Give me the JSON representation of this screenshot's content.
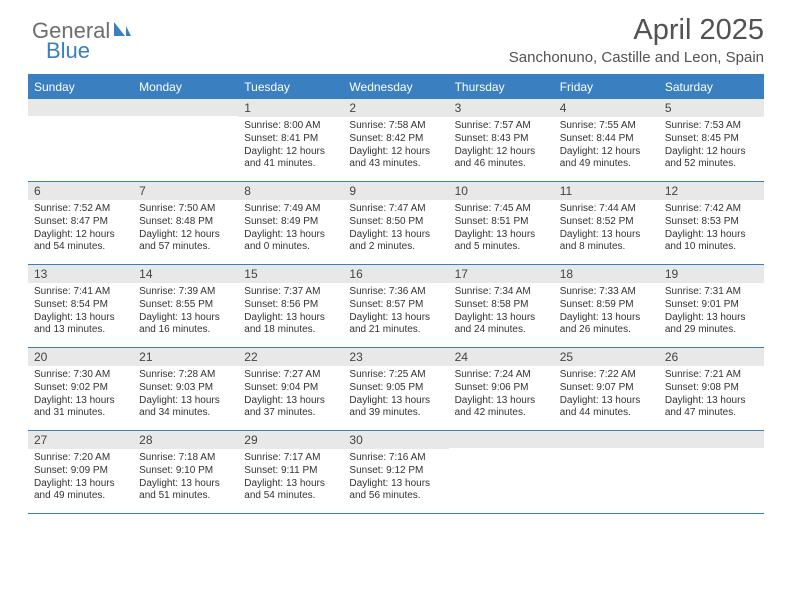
{
  "logo": {
    "text1": "General",
    "text2": "Blue"
  },
  "title": "April 2025",
  "location": "Sanchonuno, Castille and Leon, Spain",
  "colors": {
    "header_bg": "#3a7fbf",
    "header_text": "#ffffff",
    "daynum_bg": "#e8e8e8",
    "body_text": "#333333",
    "logo_gray": "#6d6e71",
    "logo_blue": "#3a7fbf"
  },
  "day_headers": [
    "Sunday",
    "Monday",
    "Tuesday",
    "Wednesday",
    "Thursday",
    "Friday",
    "Saturday"
  ],
  "weeks": [
    [
      {
        "n": "",
        "sr": "",
        "ss": "",
        "dl": ""
      },
      {
        "n": "",
        "sr": "",
        "ss": "",
        "dl": ""
      },
      {
        "n": "1",
        "sr": "8:00 AM",
        "ss": "8:41 PM",
        "dl": "12 hours and 41 minutes."
      },
      {
        "n": "2",
        "sr": "7:58 AM",
        "ss": "8:42 PM",
        "dl": "12 hours and 43 minutes."
      },
      {
        "n": "3",
        "sr": "7:57 AM",
        "ss": "8:43 PM",
        "dl": "12 hours and 46 minutes."
      },
      {
        "n": "4",
        "sr": "7:55 AM",
        "ss": "8:44 PM",
        "dl": "12 hours and 49 minutes."
      },
      {
        "n": "5",
        "sr": "7:53 AM",
        "ss": "8:45 PM",
        "dl": "12 hours and 52 minutes."
      }
    ],
    [
      {
        "n": "6",
        "sr": "7:52 AM",
        "ss": "8:47 PM",
        "dl": "12 hours and 54 minutes."
      },
      {
        "n": "7",
        "sr": "7:50 AM",
        "ss": "8:48 PM",
        "dl": "12 hours and 57 minutes."
      },
      {
        "n": "8",
        "sr": "7:49 AM",
        "ss": "8:49 PM",
        "dl": "13 hours and 0 minutes."
      },
      {
        "n": "9",
        "sr": "7:47 AM",
        "ss": "8:50 PM",
        "dl": "13 hours and 2 minutes."
      },
      {
        "n": "10",
        "sr": "7:45 AM",
        "ss": "8:51 PM",
        "dl": "13 hours and 5 minutes."
      },
      {
        "n": "11",
        "sr": "7:44 AM",
        "ss": "8:52 PM",
        "dl": "13 hours and 8 minutes."
      },
      {
        "n": "12",
        "sr": "7:42 AM",
        "ss": "8:53 PM",
        "dl": "13 hours and 10 minutes."
      }
    ],
    [
      {
        "n": "13",
        "sr": "7:41 AM",
        "ss": "8:54 PM",
        "dl": "13 hours and 13 minutes."
      },
      {
        "n": "14",
        "sr": "7:39 AM",
        "ss": "8:55 PM",
        "dl": "13 hours and 16 minutes."
      },
      {
        "n": "15",
        "sr": "7:37 AM",
        "ss": "8:56 PM",
        "dl": "13 hours and 18 minutes."
      },
      {
        "n": "16",
        "sr": "7:36 AM",
        "ss": "8:57 PM",
        "dl": "13 hours and 21 minutes."
      },
      {
        "n": "17",
        "sr": "7:34 AM",
        "ss": "8:58 PM",
        "dl": "13 hours and 24 minutes."
      },
      {
        "n": "18",
        "sr": "7:33 AM",
        "ss": "8:59 PM",
        "dl": "13 hours and 26 minutes."
      },
      {
        "n": "19",
        "sr": "7:31 AM",
        "ss": "9:01 PM",
        "dl": "13 hours and 29 minutes."
      }
    ],
    [
      {
        "n": "20",
        "sr": "7:30 AM",
        "ss": "9:02 PM",
        "dl": "13 hours and 31 minutes."
      },
      {
        "n": "21",
        "sr": "7:28 AM",
        "ss": "9:03 PM",
        "dl": "13 hours and 34 minutes."
      },
      {
        "n": "22",
        "sr": "7:27 AM",
        "ss": "9:04 PM",
        "dl": "13 hours and 37 minutes."
      },
      {
        "n": "23",
        "sr": "7:25 AM",
        "ss": "9:05 PM",
        "dl": "13 hours and 39 minutes."
      },
      {
        "n": "24",
        "sr": "7:24 AM",
        "ss": "9:06 PM",
        "dl": "13 hours and 42 minutes."
      },
      {
        "n": "25",
        "sr": "7:22 AM",
        "ss": "9:07 PM",
        "dl": "13 hours and 44 minutes."
      },
      {
        "n": "26",
        "sr": "7:21 AM",
        "ss": "9:08 PM",
        "dl": "13 hours and 47 minutes."
      }
    ],
    [
      {
        "n": "27",
        "sr": "7:20 AM",
        "ss": "9:09 PM",
        "dl": "13 hours and 49 minutes."
      },
      {
        "n": "28",
        "sr": "7:18 AM",
        "ss": "9:10 PM",
        "dl": "13 hours and 51 minutes."
      },
      {
        "n": "29",
        "sr": "7:17 AM",
        "ss": "9:11 PM",
        "dl": "13 hours and 54 minutes."
      },
      {
        "n": "30",
        "sr": "7:16 AM",
        "ss": "9:12 PM",
        "dl": "13 hours and 56 minutes."
      },
      {
        "n": "",
        "sr": "",
        "ss": "",
        "dl": ""
      },
      {
        "n": "",
        "sr": "",
        "ss": "",
        "dl": ""
      },
      {
        "n": "",
        "sr": "",
        "ss": "",
        "dl": ""
      }
    ]
  ],
  "labels": {
    "sunrise": "Sunrise: ",
    "sunset": "Sunset: ",
    "daylight": "Daylight: "
  }
}
